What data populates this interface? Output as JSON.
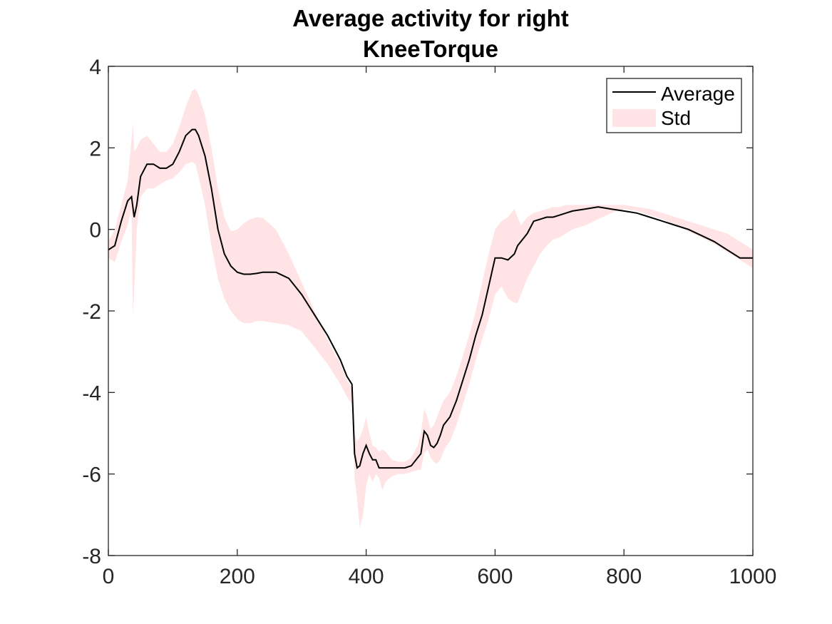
{
  "figure": {
    "title_lines": [
      "Average activity for right",
      "KneeTorque"
    ]
  },
  "legend": {
    "location": "top-right",
    "entries": [
      "Average",
      "Std"
    ]
  },
  "colors": {
    "average_line": "#000000",
    "std_fill": "#ffe3e5",
    "axes": "#262626",
    "background": "#ffffff"
  },
  "chart_data": {
    "type": "line",
    "title": "Average activity for right KneeTorque",
    "xlabel": "",
    "ylabel": "",
    "xlim": [
      0,
      1000
    ],
    "ylim": [
      -8,
      4
    ],
    "xticks": [
      0,
      200,
      400,
      600,
      800,
      1000
    ],
    "xtick_labels": [
      "0",
      "200",
      "400",
      "600",
      "800",
      "1000"
    ],
    "yticks": [
      -8,
      -6,
      -4,
      -2,
      0,
      2,
      4
    ],
    "ytick_labels": [
      "-8",
      "-6",
      "-4",
      "-2",
      "0",
      "2",
      "4"
    ],
    "grid": false,
    "legend_position": "top-right",
    "series": [
      {
        "name": "Average",
        "x": [
          0,
          10,
          20,
          30,
          36,
          40,
          44,
          50,
          60,
          70,
          80,
          90,
          100,
          110,
          120,
          130,
          135,
          140,
          150,
          160,
          170,
          180,
          190,
          200,
          210,
          220,
          230,
          240,
          260,
          280,
          300,
          320,
          340,
          360,
          370,
          378,
          382,
          386,
          390,
          395,
          400,
          405,
          410,
          415,
          420,
          425,
          430,
          440,
          450,
          460,
          470,
          480,
          485,
          490,
          495,
          500,
          505,
          510,
          515,
          520,
          525,
          530,
          535,
          540,
          550,
          560,
          570,
          580,
          590,
          600,
          610,
          620,
          630,
          635,
          640,
          645,
          650,
          660,
          670,
          680,
          690,
          700,
          710,
          720,
          740,
          760,
          780,
          800,
          820,
          840,
          860,
          880,
          900,
          920,
          940,
          960,
          980,
          1000
        ],
        "y": [
          -0.5,
          -0.4,
          0.2,
          0.7,
          0.8,
          0.3,
          0.6,
          1.3,
          1.6,
          1.6,
          1.5,
          1.5,
          1.6,
          1.9,
          2.3,
          2.45,
          2.45,
          2.3,
          1.8,
          1.0,
          0.0,
          -0.6,
          -0.9,
          -1.05,
          -1.1,
          -1.1,
          -1.08,
          -1.05,
          -1.05,
          -1.2,
          -1.6,
          -2.1,
          -2.6,
          -3.2,
          -3.6,
          -3.8,
          -5.5,
          -5.85,
          -5.8,
          -5.5,
          -5.3,
          -5.5,
          -5.65,
          -5.65,
          -5.85,
          -5.85,
          -5.85,
          -5.85,
          -5.85,
          -5.85,
          -5.8,
          -5.6,
          -5.5,
          -4.95,
          -5.05,
          -5.3,
          -5.35,
          -5.25,
          -5.05,
          -4.8,
          -4.7,
          -4.6,
          -4.4,
          -4.2,
          -3.7,
          -3.2,
          -2.6,
          -2.1,
          -1.4,
          -0.7,
          -0.7,
          -0.75,
          -0.6,
          -0.4,
          -0.3,
          -0.2,
          -0.1,
          0.2,
          0.25,
          0.3,
          0.3,
          0.35,
          0.4,
          0.45,
          0.5,
          0.55,
          0.5,
          0.45,
          0.4,
          0.3,
          0.2,
          0.1,
          0.0,
          -0.15,
          -0.3,
          -0.5,
          -0.7,
          -0.7
        ]
      },
      {
        "name": "Std",
        "x": [
          0,
          10,
          20,
          30,
          36,
          38,
          40,
          44,
          50,
          60,
          70,
          80,
          90,
          100,
          110,
          120,
          130,
          135,
          140,
          150,
          160,
          170,
          180,
          190,
          200,
          210,
          220,
          230,
          240,
          260,
          280,
          300,
          320,
          340,
          360,
          370,
          378,
          382,
          386,
          390,
          395,
          400,
          405,
          410,
          415,
          420,
          425,
          430,
          440,
          450,
          460,
          470,
          480,
          485,
          490,
          495,
          500,
          505,
          510,
          515,
          520,
          525,
          530,
          535,
          540,
          550,
          560,
          570,
          580,
          590,
          600,
          610,
          620,
          630,
          635,
          640,
          645,
          650,
          660,
          670,
          680,
          690,
          700,
          710,
          720,
          740,
          760,
          780,
          800,
          820,
          840,
          860,
          880,
          900,
          920,
          940,
          960,
          980,
          1000
        ],
        "upper": [
          -0.3,
          0.0,
          0.6,
          1.2,
          2.2,
          2.6,
          1.9,
          2.0,
          2.2,
          2.3,
          2.1,
          1.9,
          1.9,
          2.1,
          2.5,
          3.0,
          3.4,
          3.45,
          3.3,
          2.8,
          2.0,
          1.0,
          0.3,
          -0.05,
          0.0,
          0.15,
          0.25,
          0.3,
          0.28,
          0.0,
          -0.6,
          -1.3,
          -2.0,
          -2.7,
          -3.3,
          -3.7,
          -3.9,
          -5.0,
          -5.2,
          -5.1,
          -4.9,
          -4.6,
          -5.0,
          -5.3,
          -5.35,
          -5.45,
          -5.4,
          -5.45,
          -5.65,
          -5.7,
          -5.7,
          -5.6,
          -5.3,
          -5.0,
          -4.4,
          -4.6,
          -4.9,
          -4.8,
          -4.6,
          -4.4,
          -4.2,
          -4.1,
          -4.0,
          -3.8,
          -3.6,
          -3.1,
          -2.6,
          -2.0,
          -1.3,
          -0.6,
          0.0,
          0.2,
          0.3,
          0.5,
          0.3,
          0.1,
          0.2,
          0.3,
          0.4,
          0.45,
          0.5,
          0.55,
          0.55,
          0.6,
          0.6,
          0.6,
          0.6,
          0.6,
          0.6,
          0.55,
          0.5,
          0.4,
          0.3,
          0.2,
          0.1,
          0.0,
          -0.1,
          -0.3,
          -0.5
        ],
        "lower": [
          -0.7,
          -0.8,
          -0.3,
          0.1,
          0.5,
          -2.1,
          -1.5,
          0.0,
          0.8,
          1.0,
          1.0,
          1.1,
          1.2,
          1.25,
          1.4,
          1.6,
          1.65,
          1.6,
          1.3,
          0.6,
          -0.4,
          -1.2,
          -1.7,
          -2.0,
          -2.2,
          -2.3,
          -2.3,
          -2.25,
          -2.25,
          -2.3,
          -2.35,
          -2.5,
          -2.9,
          -3.3,
          -3.8,
          -4.1,
          -4.3,
          -6.1,
          -6.6,
          -7.3,
          -7.0,
          -6.3,
          -6.0,
          -6.2,
          -6.0,
          -6.1,
          -6.4,
          -6.2,
          -6.05,
          -6.0,
          -6.0,
          -5.95,
          -5.9,
          -5.9,
          -5.5,
          -5.4,
          -5.6,
          -5.7,
          -5.75,
          -5.65,
          -5.45,
          -5.3,
          -5.2,
          -5.0,
          -4.8,
          -4.3,
          -3.8,
          -3.2,
          -2.7,
          -2.2,
          -1.6,
          -1.4,
          -1.7,
          -1.8,
          -1.8,
          -1.6,
          -1.4,
          -1.2,
          -0.9,
          -0.6,
          -0.4,
          -0.25,
          -0.2,
          -0.1,
          0.0,
          0.1,
          0.25,
          0.4,
          0.5,
          0.45,
          0.35,
          0.25,
          0.1,
          -0.05,
          -0.2,
          -0.35,
          -0.55,
          -0.75,
          -0.95
        ]
      }
    ]
  }
}
